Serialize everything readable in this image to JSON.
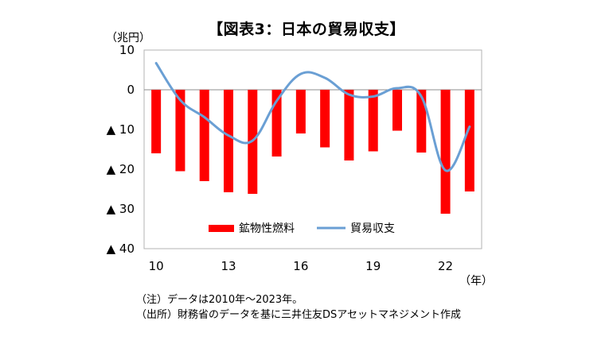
{
  "chart_data": {
    "type": "bar+line",
    "title": "【図表3：日本の貿易収支】",
    "y_unit_label": "（兆円）",
    "x_unit_label": "（年）",
    "ylim": [
      -40,
      10
    ],
    "yticks": [
      10,
      0,
      -10,
      -20,
      -30,
      -40
    ],
    "ytick_labels": [
      "10",
      "0",
      "▲ 10",
      "▲ 20",
      "▲ 30",
      "▲ 40"
    ],
    "categories": [
      "2010",
      "2011",
      "2012",
      "2013",
      "2014",
      "2015",
      "2016",
      "2017",
      "2018",
      "2019",
      "2020",
      "2021",
      "2022",
      "2023"
    ],
    "xtick_labels": [
      {
        "index": 0,
        "label": "10"
      },
      {
        "index": 3,
        "label": "13"
      },
      {
        "index": 6,
        "label": "16"
      },
      {
        "index": 9,
        "label": "19"
      },
      {
        "index": 12,
        "label": "22"
      }
    ],
    "series": [
      {
        "name": "鉱物性燃料",
        "type": "bar",
        "color": "#ff0000",
        "values": [
          -16.0,
          -20.5,
          -23.0,
          -25.8,
          -26.2,
          -16.8,
          -11.0,
          -14.5,
          -17.8,
          -15.5,
          -10.3,
          -15.8,
          -31.2,
          -25.6
        ]
      },
      {
        "name": "貿易収支",
        "type": "line",
        "color": "#6a9fd4",
        "values": [
          6.7,
          -2.6,
          -6.9,
          -11.5,
          -12.8,
          -2.8,
          4.0,
          3.0,
          -1.2,
          -1.7,
          0.4,
          -1.7,
          -20.3,
          -9.3
        ]
      }
    ],
    "legend_position": "bottom-center",
    "grid": false
  },
  "notes": [
    "（注）データは2010年～2023年。",
    "（出所）財務省のデータを基に三井住友DSアセットマネジメント作成"
  ]
}
